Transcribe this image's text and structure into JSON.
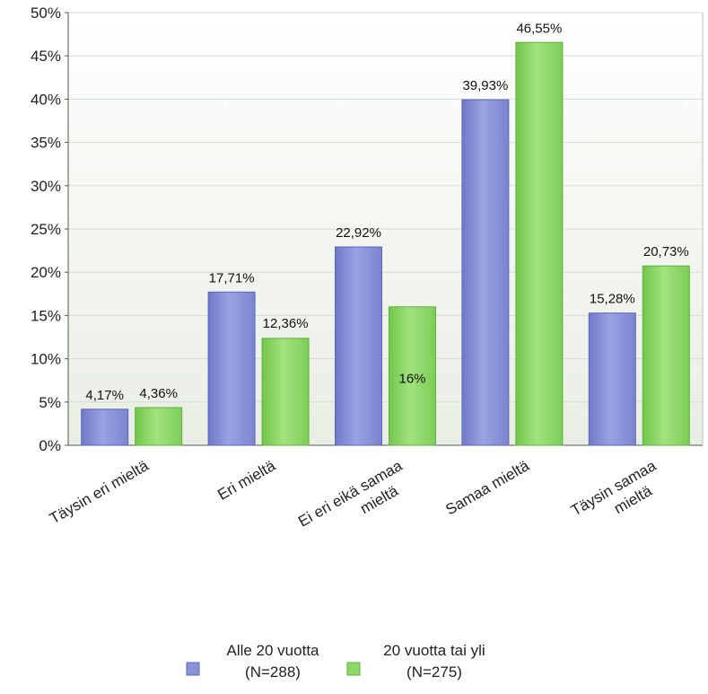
{
  "chart_data": {
    "type": "bar",
    "categories": [
      [
        "Täysin eri mieltä"
      ],
      [
        "Eri mieltä"
      ],
      [
        "Ei eri eikä samaa",
        "mieltä"
      ],
      [
        "Samaa mieltä"
      ],
      [
        "Täysin samaa",
        "mieltä"
      ]
    ],
    "series": [
      {
        "name_lines": [
          "Alle 20 vuotta",
          "(N=288)"
        ],
        "values": [
          4.17,
          17.71,
          22.92,
          39.93,
          15.28
        ],
        "labels": [
          "4,17%",
          "17,71%",
          "22,92%",
          "39,93%",
          "15,28%"
        ],
        "color": "#8a93d8"
      },
      {
        "name_lines": [
          "20 vuotta tai yli",
          "(N=275)"
        ],
        "values": [
          4.36,
          12.36,
          16,
          46.55,
          20.73
        ],
        "labels": [
          "4,36%",
          "12,36%",
          "16%",
          "46,55%",
          "20,73%"
        ],
        "color": "#8ed86a"
      }
    ],
    "ylim": [
      0,
      50
    ],
    "yticks": [
      {
        "value": 0,
        "label": "0%"
      },
      {
        "value": 5,
        "label": "5%"
      },
      {
        "value": 10,
        "label": "10%"
      },
      {
        "value": 15,
        "label": "15%"
      },
      {
        "value": 20,
        "label": "20%"
      },
      {
        "value": 25,
        "label": "25%"
      },
      {
        "value": 30,
        "label": "30%"
      },
      {
        "value": 35,
        "label": "35%"
      },
      {
        "value": 40,
        "label": "40%"
      },
      {
        "value": 45,
        "label": "45%"
      },
      {
        "value": 50,
        "label": "50%"
      }
    ],
    "grid": true,
    "legend_position": "bottom"
  }
}
